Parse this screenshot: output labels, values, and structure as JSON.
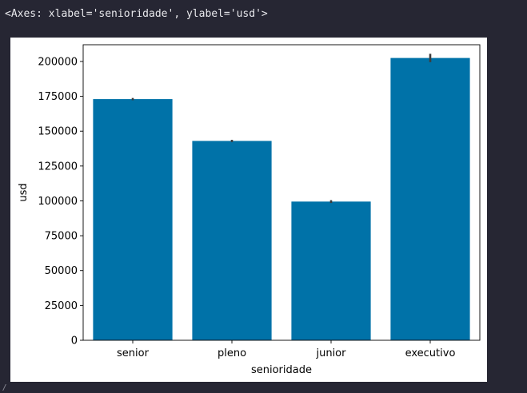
{
  "output_repr": "<Axes: xlabel='senioridade', ylabel='usd'>",
  "chart_data": {
    "type": "bar",
    "xlabel": "senioridade",
    "ylabel": "usd",
    "categories": [
      "senior",
      "pleno",
      "junior",
      "executivo"
    ],
    "values": [
      173000,
      143000,
      99500,
      202500
    ],
    "error": [
      [
        172200,
        173800
      ],
      [
        142200,
        143800
      ],
      [
        98500,
        100500
      ],
      [
        199500,
        205500
      ]
    ],
    "ylim": [
      0,
      212000
    ],
    "yticks": [
      0,
      25000,
      50000,
      75000,
      100000,
      125000,
      150000,
      175000,
      200000
    ],
    "bar_color": "#0072a8",
    "error_color": "#3d3d3d",
    "grid": false
  }
}
